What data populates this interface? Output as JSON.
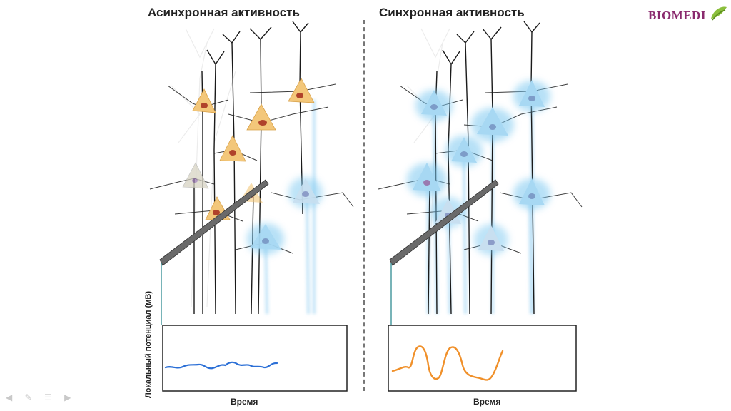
{
  "logo": {
    "text": "BIOMEDI"
  },
  "panels": [
    {
      "title": "Асинхронная активность",
      "xlabel": "Время"
    },
    {
      "title": "Синхронная активность",
      "xlabel": "Время"
    }
  ],
  "ylabel": "Локальный потенциал (мВ)",
  "colors": {
    "async_cell": "#f3c77a",
    "async_nucleus": "#b0422b",
    "sync_cell": "#7cc8f0",
    "async_trace": "#2b6fd6",
    "sync_trace": "#f0902a",
    "dendrite": "#1a1a1a",
    "axon_glow": "#8ccbf0"
  },
  "nav_icons": [
    "arrow-left-icon",
    "pen-icon",
    "menu-icon",
    "arrow-right-icon"
  ]
}
